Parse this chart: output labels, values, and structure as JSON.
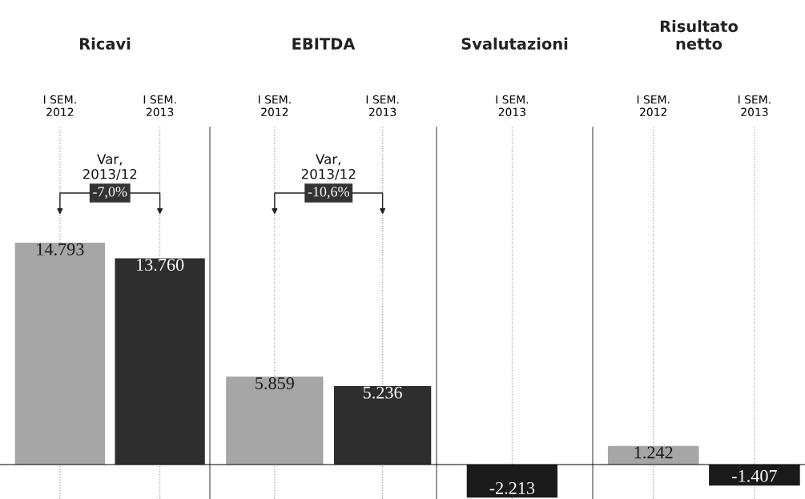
{
  "chart_data": [
    {
      "type": "bar",
      "title": "Ricavi",
      "categories": [
        "I SEM.\n2012",
        "I SEM.\n2013"
      ],
      "values": [
        14793,
        13760
      ],
      "colors": [
        "#a6a6a6",
        "#2e2e2e"
      ],
      "value_labels": [
        "14.793",
        "13.760"
      ],
      "ylim": [
        -2300,
        22500
      ],
      "tick_labels": "x",
      "grid": "x",
      "annotations": [
        "Var,\n2013/12",
        "-7,0%"
      ]
    },
    {
      "type": "bar",
      "title": "EBITDA",
      "categories": [
        "I SEM.\n2012",
        "I SEM.\n2013"
      ],
      "values": [
        5859,
        5236
      ],
      "colors": [
        "#a6a6a6",
        "#2e2e2e"
      ],
      "value_labels": [
        "5.859",
        "5.236"
      ],
      "ylim": [
        -2300,
        22500
      ],
      "tick_labels": "x",
      "grid": "x",
      "annotations": [
        "Var,\n2013/12",
        "-10,6%"
      ]
    },
    {
      "type": "bar",
      "title": "Svalutazioni",
      "categories": [
        "I SEM.\n2013"
      ],
      "values": [
        -2213
      ],
      "colors": [
        "#1a1a1a"
      ],
      "value_labels": [
        "-2.213"
      ],
      "ylim": [
        -2300,
        22500
      ],
      "tick_labels": "x",
      "grid": "x"
    },
    {
      "type": "bar",
      "title": "Risultato\nnetto",
      "categories": [
        "I SEM.\n2012",
        "I SEM.\n2013"
      ],
      "values": [
        1242,
        -1407
      ],
      "colors": [
        "#a6a6a6",
        "#1a1a1a"
      ],
      "value_labels": [
        "1.242",
        "-1.407"
      ],
      "ylim": [
        -2300,
        22500
      ],
      "tick_labels": "x",
      "grid": "x"
    }
  ]
}
